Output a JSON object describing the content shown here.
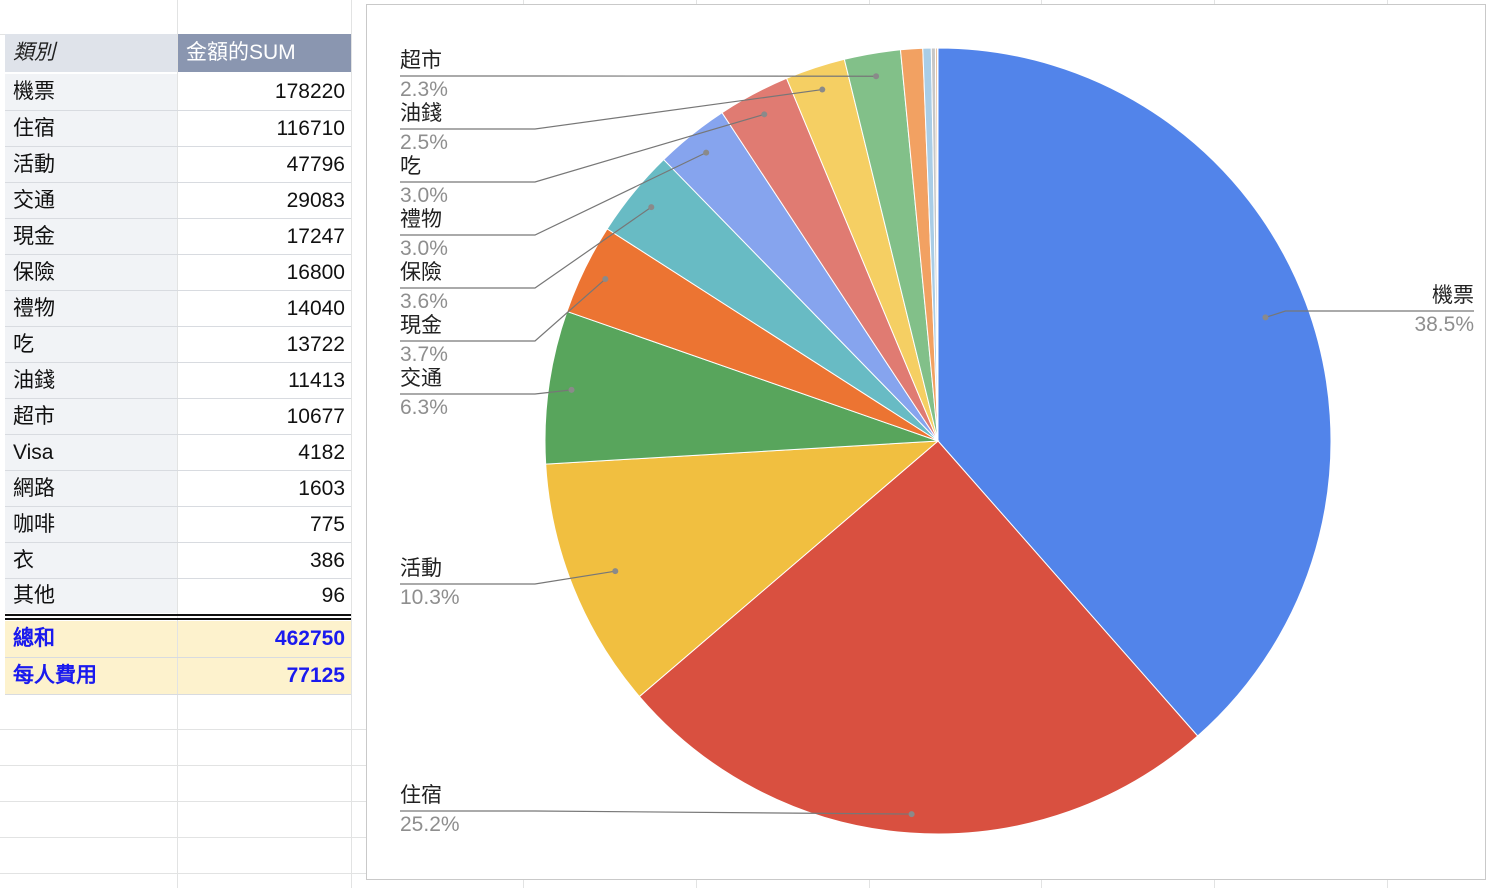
{
  "pivot": {
    "header": {
      "category": "類別",
      "sum": "金額的SUM"
    },
    "rows": [
      {
        "category": "機票",
        "value": "178220"
      },
      {
        "category": "住宿",
        "value": "116710"
      },
      {
        "category": "活動",
        "value": "47796"
      },
      {
        "category": "交通",
        "value": "29083"
      },
      {
        "category": "現金",
        "value": "17247"
      },
      {
        "category": "保險",
        "value": "16800"
      },
      {
        "category": "禮物",
        "value": "14040"
      },
      {
        "category": "吃",
        "value": "13722"
      },
      {
        "category": "油錢",
        "value": "11413"
      },
      {
        "category": "超市",
        "value": "10677"
      },
      {
        "category": "Visa",
        "value": "4182"
      },
      {
        "category": "網路",
        "value": "1603"
      },
      {
        "category": "咖啡",
        "value": "775"
      },
      {
        "category": "衣",
        "value": "386"
      },
      {
        "category": "其他",
        "value": "96"
      }
    ],
    "total": {
      "label": "總和",
      "value": "462750"
    },
    "per_person": {
      "label": "每人費用",
      "value": "77125"
    }
  },
  "chart_data": {
    "type": "pie",
    "categories": [
      "機票",
      "住宿",
      "活動",
      "交通",
      "現金",
      "保險",
      "禮物",
      "吃",
      "油錢",
      "超市",
      "Visa",
      "網路",
      "咖啡",
      "衣",
      "其他"
    ],
    "values": [
      178220,
      116710,
      47796,
      29083,
      17247,
      16800,
      14040,
      13722,
      11413,
      10677,
      4182,
      1603,
      775,
      386,
      96
    ],
    "colors": [
      "#5284ea",
      "#d95040",
      "#f1bf40",
      "#58a55c",
      "#ec7432",
      "#68bbc4",
      "#86a4ee",
      "#e07b72",
      "#f5cf63",
      "#82c089",
      "#f2a162",
      "#a9cde6",
      "#c7c7c7",
      "#e6c3a2",
      "#b5b5b5"
    ],
    "labels": [
      {
        "name": "機票",
        "pct": "38.5%"
      },
      {
        "name": "住宿",
        "pct": "25.2%"
      },
      {
        "name": "活動",
        "pct": "10.3%"
      },
      {
        "name": "交通",
        "pct": "6.3%"
      },
      {
        "name": "現金",
        "pct": "3.7%"
      },
      {
        "name": "保險",
        "pct": "3.6%"
      },
      {
        "name": "禮物",
        "pct": "3.0%"
      },
      {
        "name": "吃",
        "pct": "3.0%"
      },
      {
        "name": "油錢",
        "pct": "2.5%"
      },
      {
        "name": "超市",
        "pct": "2.3%"
      }
    ],
    "start_angle": "12 o'clock",
    "direction": "clockwise",
    "legend": "none"
  }
}
